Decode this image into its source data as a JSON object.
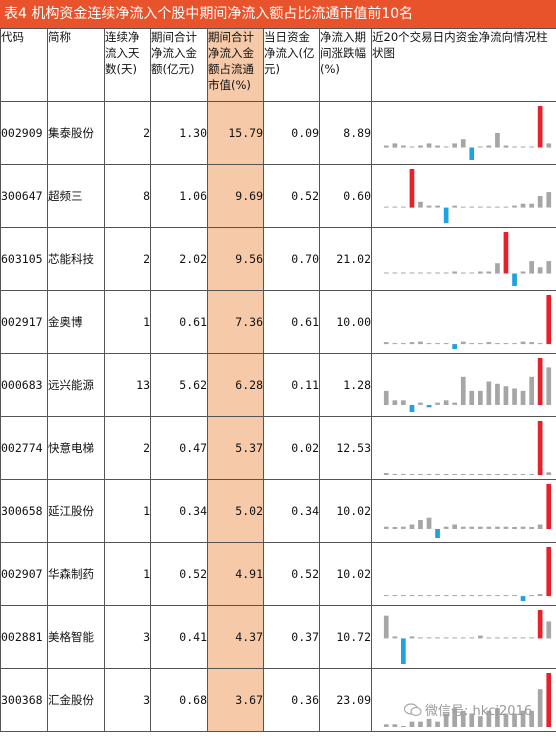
{
  "title": "表4  机构资金连续净流入个股中期间净流入额占比流通市值前10名",
  "headers": {
    "code": "代码",
    "name": "简称",
    "days": "连续净流入天数(天)",
    "amount": "期间合计净流入金额(亿元)",
    "ratio": "期间合计净流入金额占流通市值(%)",
    "today": "当日资金净流入(亿元)",
    "change": "净流入期间涨跌幅(%)",
    "chart": "近20个交易日内资金净流向情况柱状图"
  },
  "rows": [
    {
      "code": "002909",
      "name": "集泰股份",
      "days": "2",
      "amount": "1.30",
      "ratio": "15.79",
      "today": "0.09",
      "change": "8.89",
      "flows": [
        0.05,
        0.1,
        0.05,
        0,
        0.05,
        0.1,
        0.05,
        0,
        0.1,
        0.2,
        -0.3,
        0,
        0.05,
        0.35,
        0.05,
        0,
        0,
        0,
        1,
        0.1
      ]
    },
    {
      "code": "300647",
      "name": "超频三",
      "days": "8",
      "amount": "1.06",
      "ratio": "9.69",
      "today": "0.52",
      "change": "0.60",
      "flows": [
        0,
        0,
        0,
        1,
        0.15,
        0.05,
        0.05,
        -0.4,
        0.05,
        0,
        0,
        0,
        0,
        0,
        0,
        0.05,
        0.1,
        0.1,
        0.3,
        0.4
      ]
    },
    {
      "code": "603105",
      "name": "芯能科技",
      "days": "2",
      "amount": "2.02",
      "ratio": "9.56",
      "today": "0.70",
      "change": "21.02",
      "flows": [
        0,
        0,
        0,
        0,
        0,
        0,
        0,
        0,
        0.05,
        0,
        0,
        0.05,
        0.05,
        0.25,
        1,
        -0.3,
        0.05,
        0.3,
        0.15,
        0.3
      ]
    },
    {
      "code": "002917",
      "name": "金奥博",
      "days": "1",
      "amount": "0.61",
      "ratio": "7.36",
      "today": "0.61",
      "change": "10.00",
      "flows": [
        0.03,
        0,
        0,
        0.03,
        0.05,
        0,
        0,
        0,
        -0.1,
        0.05,
        0,
        0,
        0.03,
        0,
        0,
        0,
        0.05,
        0.03,
        0,
        1
      ]
    },
    {
      "code": "000683",
      "name": "远兴能源",
      "days": "13",
      "amount": "5.62",
      "ratio": "6.28",
      "today": "0.11",
      "change": "1.28",
      "flows": [
        0.3,
        0.1,
        0.1,
        -0.15,
        0.05,
        -0.05,
        0.05,
        0.1,
        0.05,
        0.6,
        0.3,
        0.3,
        0.5,
        0.45,
        0.4,
        0.35,
        0.3,
        0.6,
        1,
        0.8
      ]
    },
    {
      "code": "002774",
      "name": "快意电梯",
      "days": "2",
      "amount": "0.47",
      "ratio": "5.37",
      "today": "0.02",
      "change": "12.53",
      "flows": [
        0.02,
        0,
        0,
        0,
        0,
        0,
        0,
        0,
        0,
        0,
        0,
        0,
        0,
        0,
        0,
        0,
        0,
        0,
        1,
        0.05
      ]
    },
    {
      "code": "300658",
      "name": "延江股份",
      "days": "1",
      "amount": "0.34",
      "ratio": "5.02",
      "today": "0.34",
      "change": "10.02",
      "flows": [
        0.05,
        0.03,
        0.05,
        0.1,
        0.2,
        0.25,
        -0.2,
        0.05,
        0.1,
        0.05,
        0.05,
        0.05,
        0.05,
        0.05,
        0.05,
        0.02,
        0.05,
        0.02,
        0.1,
        1
      ]
    },
    {
      "code": "002907",
      "name": "华森制药",
      "days": "1",
      "amount": "0.52",
      "ratio": "4.91",
      "today": "0.52",
      "change": "10.02",
      "flows": [
        0,
        0,
        0,
        0,
        0,
        0,
        0,
        0,
        0,
        0,
        0,
        0,
        0,
        0,
        0,
        0,
        -0.1,
        0,
        0.02,
        1
      ]
    },
    {
      "code": "002881",
      "name": "美格智能",
      "days": "3",
      "amount": "0.41",
      "ratio": "4.37",
      "today": "0.37",
      "change": "10.72",
      "flows": [
        0.8,
        0.05,
        -0.9,
        0.03,
        0,
        0,
        0,
        0,
        0,
        0,
        0,
        0.1,
        0,
        0,
        0,
        0,
        0,
        0,
        1,
        0.6
      ]
    },
    {
      "code": "300368",
      "name": "汇金股份",
      "days": "3",
      "amount": "0.68",
      "ratio": "3.67",
      "today": "0.36",
      "change": "23.09",
      "flows": [
        0.05,
        0.05,
        0,
        0.1,
        0.1,
        0.15,
        0.1,
        0.25,
        0.35,
        0.3,
        0.25,
        0.2,
        0.3,
        0.35,
        0.25,
        0.25,
        0.3,
        0.3,
        0.7,
        1
      ]
    }
  ],
  "watermark": "微信号: hkcj2016",
  "colors": {
    "up_last": "#e8202a",
    "down": "#1fa2dd",
    "neutral": "#a6a6a6",
    "highlight": "#f6c9a8",
    "title_bg": "#e8532b"
  }
}
